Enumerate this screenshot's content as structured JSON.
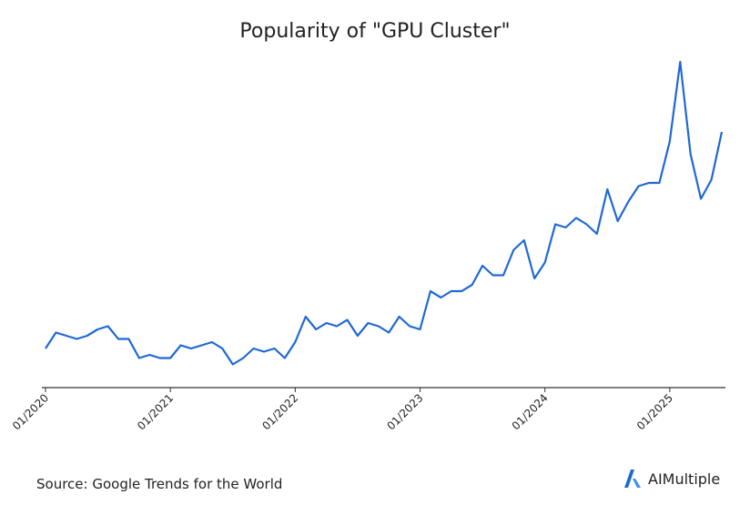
{
  "chart_data": {
    "type": "line",
    "title": "Popularity of \"GPU Cluster\"",
    "xlabel": "",
    "ylabel": "",
    "x_tick_labels": [
      "01/2020",
      "01/2021",
      "01/2022",
      "01/2023",
      "01/2024",
      "01/2025"
    ],
    "x_tick_index": [
      0,
      12,
      24,
      36,
      48,
      60
    ],
    "ylim": [
      0,
      100
    ],
    "grid": false,
    "legend": "none",
    "line_color": "#1f68d6",
    "series": [
      {
        "values": [
          10,
          15,
          14,
          13,
          14,
          16,
          17,
          13,
          13,
          7,
          8,
          7,
          7,
          11,
          10,
          11,
          12,
          10,
          5,
          7,
          10,
          9,
          10,
          7,
          12,
          20,
          16,
          18,
          17,
          19,
          14,
          18,
          17,
          15,
          20,
          17,
          16,
          28,
          26,
          28,
          28,
          30,
          36,
          33,
          33,
          41,
          44,
          32,
          37,
          49,
          48,
          51,
          49,
          46,
          60,
          50,
          56,
          61,
          62,
          62,
          75,
          100,
          71,
          57,
          63,
          78
        ]
      }
    ]
  },
  "footer": {
    "source": "Source: Google Trends for the World",
    "brand": "AIMultiple",
    "brand_icon": "aimultiple-logo-icon",
    "brand_color": "#1f68d6"
  }
}
